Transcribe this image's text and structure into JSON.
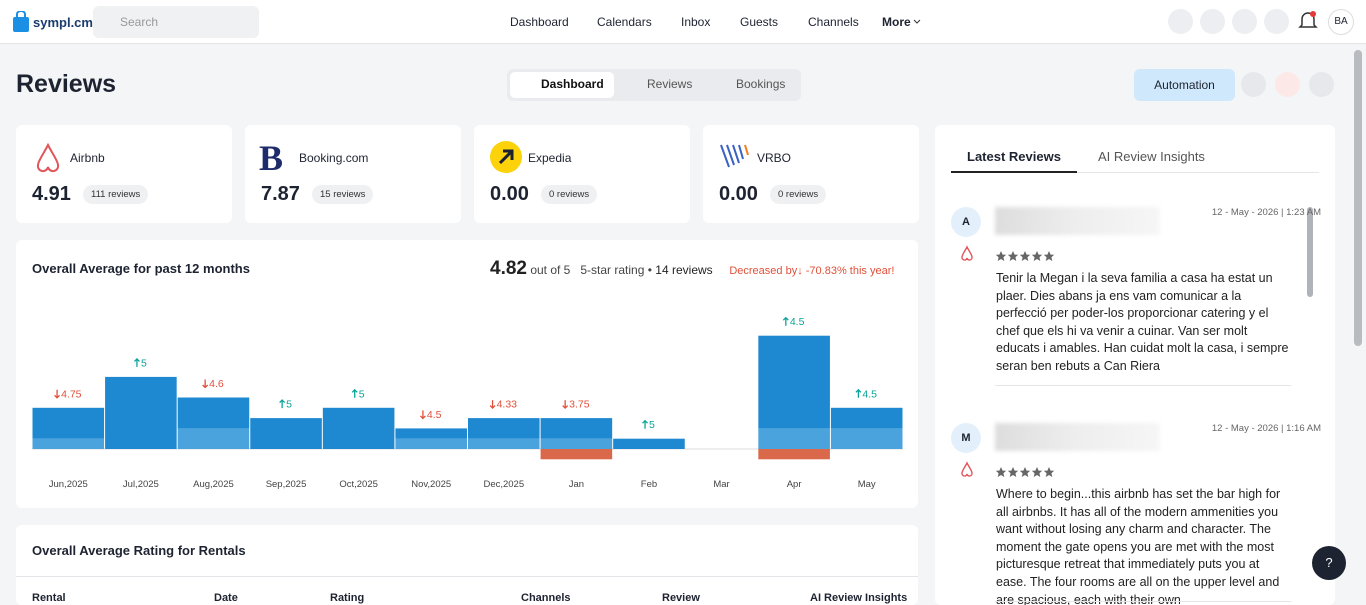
{
  "header": {
    "logo": "sympl.cm",
    "search_placeholder": "Search",
    "nav": [
      "Dashboard",
      "Calendars",
      "Inbox",
      "Guests",
      "Channels",
      "More"
    ],
    "avatar": "BA"
  },
  "page": {
    "title": "Reviews",
    "tabs": [
      "Dashboard",
      "Reviews",
      "Bookings"
    ],
    "active_tab": 0,
    "automation_button": "Automation"
  },
  "channels": [
    {
      "name": "Airbnb",
      "rating": "4.91",
      "reviews": "111 reviews"
    },
    {
      "name": "Booking.com",
      "rating": "7.87",
      "reviews": "15 reviews"
    },
    {
      "name": "Expedia",
      "rating": "0.00",
      "reviews": "0 reviews"
    },
    {
      "name": "VRBO",
      "rating": "0.00",
      "reviews": "0 reviews"
    }
  ],
  "chart_data": {
    "type": "bar",
    "title": "Overall Average for past 12 months",
    "average": "4.82",
    "average_suffix": "out of 5",
    "rating_kind": "5-star rating",
    "separator": "•",
    "review_count": "14 reviews",
    "change_label": "Decreased by",
    "change_text": "-70.83% this year!",
    "categories": [
      "Jun,2025",
      "Jul,2025",
      "Aug,2025",
      "Sep,2025",
      "Oct,2025",
      "Nov,2025",
      "Dec,2025",
      "Jan",
      "Feb",
      "Mar",
      "Apr",
      "May"
    ],
    "series": [
      {
        "color": "#4aa3dc",
        "values": [
          1,
          0,
          2,
          0,
          0,
          1,
          1,
          1,
          0,
          0,
          2,
          2
        ]
      },
      {
        "color": "#1e88d0",
        "values": [
          3,
          7,
          3,
          3,
          4,
          1,
          2,
          2,
          1,
          0,
          9,
          2
        ]
      },
      {
        "color": "#d9694a",
        "values": [
          0,
          0,
          0,
          0,
          0,
          0,
          0,
          1,
          0,
          0,
          1,
          0
        ]
      }
    ],
    "ratings": [
      4.75,
      5,
      4.6,
      5,
      5,
      4.5,
      4.33,
      3.75,
      5,
      null,
      4.5,
      4.5
    ],
    "trend": [
      "down",
      "up",
      "down",
      "up",
      "up",
      "down",
      "down",
      "down",
      "up",
      null,
      "up",
      "up"
    ],
    "up_color": "#0aa39a",
    "down_color": "#e0503a"
  },
  "rentals": {
    "title": "Overall Average Rating for Rentals",
    "columns": [
      "Rental",
      "Date",
      "Rating",
      "Channels",
      "Review",
      "AI Review Insights"
    ]
  },
  "side": {
    "tabs": [
      "Latest Reviews",
      "AI Review Insights"
    ],
    "reviews": [
      {
        "initial": "A",
        "date": "12 - May - 2026 | 1:23 AM",
        "stars": 5,
        "text": "Tenir la Megan i la seva familia a casa ha estat un plaer. Dies abans ja ens vam comunicar a la perfecció per poder-los proporcionar catering y el chef que els hi va venir a cuinar. Van ser molt educats i amables. Han cuidat molt la casa, i sempre seran ben rebuts a Can Riera"
      },
      {
        "initial": "M",
        "date": "12 - May - 2026 | 1:16 AM",
        "stars": 5,
        "text": "Where to begin...this airbnb has set the bar high for all airbnbs. It has all of the modern ammenities you want without losing any charm and character. The moment the gate opens you are met with the most picturesque retreat that immediately puts you at ease. The four rooms are all on the upper level and are spacious, each with their own"
      }
    ],
    "help": "?"
  }
}
